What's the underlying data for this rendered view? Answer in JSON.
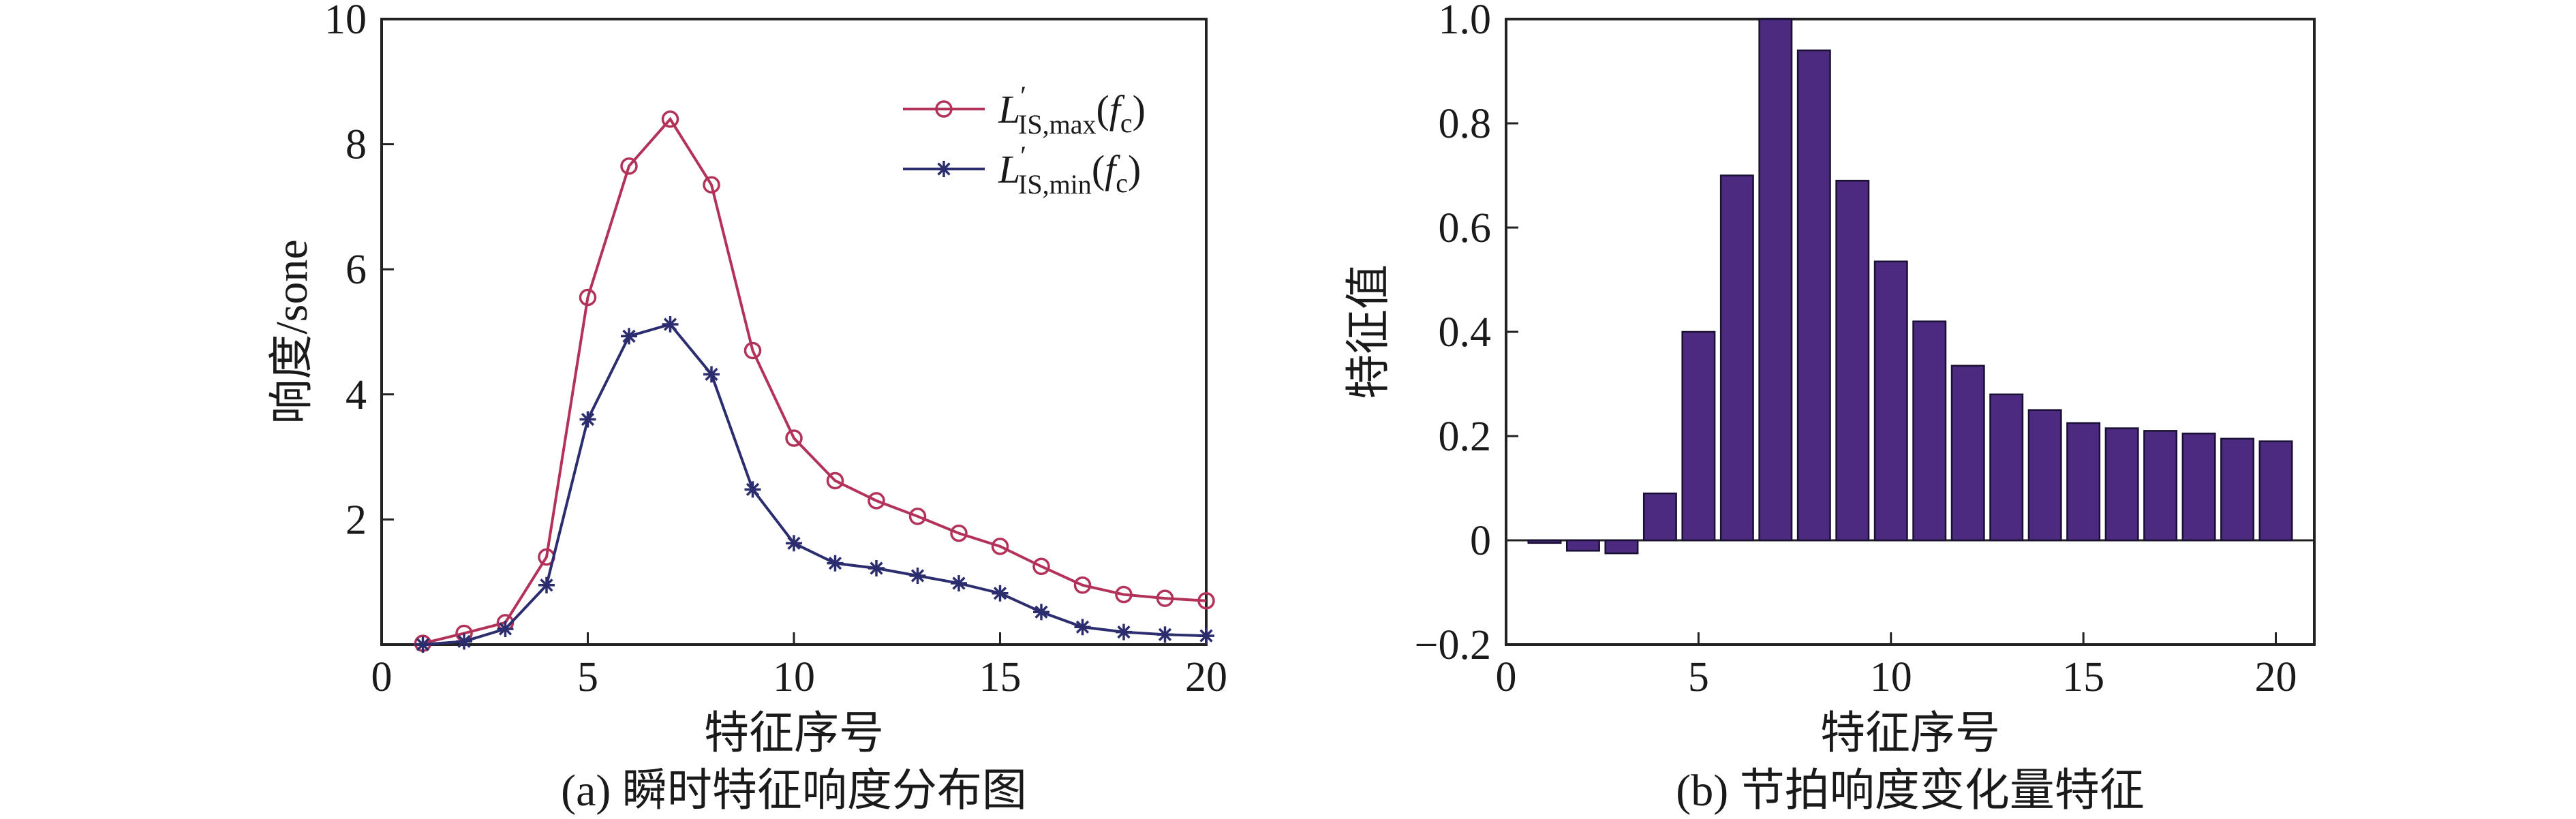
{
  "chart_data": [
    {
      "type": "line",
      "caption": "(a) 瞬时特征响度分布图",
      "xlabel": "特征序号",
      "ylabel": "响度/sone",
      "xlim": [
        0,
        20
      ],
      "ylim": [
        0,
        10
      ],
      "x_ticks": [
        "0",
        "5",
        "10",
        "15",
        "20"
      ],
      "y_ticks": [
        "2",
        "4",
        "6",
        "8",
        "10"
      ],
      "x": [
        1,
        2,
        3,
        4,
        5,
        6,
        7,
        8,
        9,
        10,
        11,
        12,
        13,
        14,
        15,
        16,
        17,
        18,
        19,
        20
      ],
      "series": [
        {
          "name": "L'IS,max(fc)",
          "legend": {
            "base": "L",
            "prime": "′",
            "sub": "IS,max",
            "open": "(",
            "arg": "f",
            "arg_sub": "c",
            "close": ")"
          },
          "marker": "circle",
          "color": "#b3325a",
          "values": [
            0.02,
            0.18,
            0.35,
            1.4,
            5.55,
            7.65,
            8.4,
            7.35,
            4.7,
            3.3,
            2.62,
            2.3,
            2.05,
            1.78,
            1.57,
            1.25,
            0.95,
            0.8,
            0.74,
            0.7
          ]
        },
        {
          "name": "L'IS,min(fc)",
          "legend": {
            "base": "L",
            "prime": "′",
            "sub": "IS,min",
            "open": "(",
            "arg": "f",
            "arg_sub": "c",
            "close": ")"
          },
          "marker": "star",
          "color": "#2b2d6e",
          "values": [
            0.0,
            0.05,
            0.25,
            0.95,
            3.6,
            4.93,
            5.12,
            4.32,
            2.48,
            1.62,
            1.3,
            1.22,
            1.1,
            0.98,
            0.82,
            0.52,
            0.28,
            0.2,
            0.16,
            0.14
          ]
        }
      ],
      "legend_position": "top-right",
      "grid": false
    },
    {
      "type": "bar",
      "caption": "(b) 节拍响度变化量特征",
      "xlabel": "特征序号",
      "ylabel": "特征值",
      "xlim": [
        0,
        21
      ],
      "ylim": [
        -0.2,
        1.0
      ],
      "x_ticks": [
        "0",
        "5",
        "10",
        "15",
        "20"
      ],
      "y_ticks": [
        "−0.2",
        "0",
        "0.2",
        "0.4",
        "0.6",
        "0.8",
        "1.0"
      ],
      "categories": [
        1,
        2,
        3,
        4,
        5,
        6,
        7,
        8,
        9,
        10,
        11,
        12,
        13,
        14,
        15,
        16,
        17,
        18,
        19,
        20
      ],
      "values": [
        -0.005,
        -0.02,
        -0.025,
        0.09,
        0.4,
        0.7,
        1.0,
        0.94,
        0.69,
        0.535,
        0.42,
        0.335,
        0.28,
        0.25,
        0.225,
        0.215,
        0.21,
        0.205,
        0.195,
        0.19
      ],
      "bar_color": "#4b2a80",
      "grid": false
    }
  ]
}
